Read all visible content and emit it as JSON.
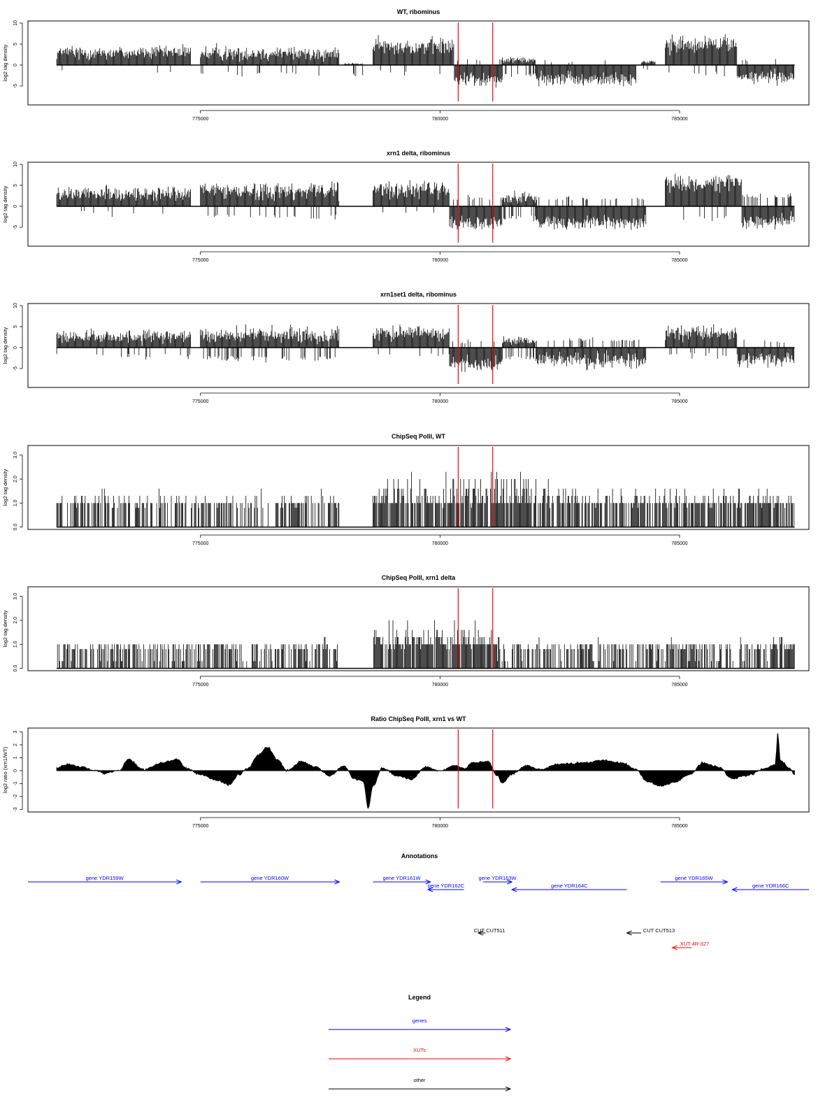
{
  "colors": {
    "gene": "#0000ff",
    "xut": "#ff0000",
    "other": "#000000",
    "marker": "#ff0000",
    "data": "#000000"
  },
  "chart_data": [
    {
      "type": "bar",
      "title": "WT, ribominus",
      "ylabel": "log2 tag density",
      "ylim": [
        -9.5,
        10.5
      ],
      "yticks": [
        -5,
        0,
        5,
        10
      ],
      "ytick_labels": [
        "-5",
        "0",
        "5",
        "10"
      ],
      "xlim": [
        771400,
        787700
      ],
      "xticks": [
        775000,
        780000,
        785000
      ],
      "xtick_labels": [
        "775000",
        "780000",
        "785000"
      ],
      "markers": [
        780380,
        781100
      ],
      "segments": [
        {
          "x": [
            772000,
            774800
          ],
          "mode": "plus",
          "mean": 3.0,
          "amp": 2.5,
          "neg_mean": 1.0,
          "neg_prob": 0.03
        },
        {
          "x": [
            775000,
            777900
          ],
          "mode": "plus",
          "mean": 2.8,
          "amp": 2.5,
          "neg_mean": 1.5,
          "neg_prob": 0.06
        },
        {
          "x": [
            778000,
            778400
          ],
          "mode": "plus",
          "mean": 0.3,
          "amp": 0.3,
          "neg_mean": 2.0,
          "neg_prob": 0.2
        },
        {
          "x": [
            778600,
            780300
          ],
          "mode": "plus",
          "mean": 4.5,
          "amp": 3.0,
          "neg_mean": 1.0,
          "neg_prob": 0.05
        },
        {
          "x": [
            780300,
            781300
          ],
          "mode": "minus",
          "mean": 3.5,
          "amp": 2.5,
          "pos_mean": 1.0,
          "pos_prob": 0.05
        },
        {
          "x": [
            781300,
            782000
          ],
          "mode": "plus",
          "mean": 1.2,
          "amp": 1.2,
          "neg_mean": 2.0,
          "neg_prob": 0.3
        },
        {
          "x": [
            782000,
            784100
          ],
          "mode": "minus",
          "mean": 3.5,
          "amp": 2.5,
          "pos_mean": 0.5,
          "pos_prob": 0.03
        },
        {
          "x": [
            784200,
            784500
          ],
          "mode": "plus",
          "mean": 0.8,
          "amp": 0.6,
          "neg_mean": 0.5,
          "neg_prob": 0.1
        },
        {
          "x": [
            784700,
            786200
          ],
          "mode": "plus",
          "mean": 5.0,
          "amp": 3.0,
          "neg_mean": 1.5,
          "neg_prob": 0.05
        },
        {
          "x": [
            786200,
            787400
          ],
          "mode": "minus",
          "mean": 2.8,
          "amp": 2.5,
          "pos_mean": 0.8,
          "pos_prob": 0.08
        }
      ]
    },
    {
      "type": "bar",
      "title": "xrn1 delta, ribominus",
      "ylabel": "log2 tag density",
      "ylim": [
        -9.5,
        10.5
      ],
      "yticks": [
        -5,
        0,
        5,
        10
      ],
      "ytick_labels": [
        "-5",
        "0",
        "5",
        "10"
      ],
      "xlim": [
        771400,
        787700
      ],
      "xticks": [
        775000,
        780000,
        785000
      ],
      "xtick_labels": [
        "775000",
        "780000",
        "785000"
      ],
      "markers": [
        780380,
        781100
      ],
      "segments": [
        {
          "x": [
            772000,
            774800
          ],
          "mode": "plus",
          "mean": 3.0,
          "amp": 2.5,
          "neg_mean": 1.0,
          "neg_prob": 0.03
        },
        {
          "x": [
            775000,
            777900
          ],
          "mode": "plus",
          "mean": 3.8,
          "amp": 3.0,
          "neg_mean": 2.0,
          "neg_prob": 0.15
        },
        {
          "x": [
            778600,
            780200
          ],
          "mode": "plus",
          "mean": 4.0,
          "amp": 3.0,
          "neg_mean": 1.0,
          "neg_prob": 0.05
        },
        {
          "x": [
            780200,
            781300
          ],
          "mode": "minus",
          "mean": 4.0,
          "amp": 2.5,
          "pos_mean": 1.5,
          "pos_prob": 0.15
        },
        {
          "x": [
            781300,
            782000
          ],
          "mode": "plus",
          "mean": 2.0,
          "amp": 2.0,
          "neg_mean": 2.0,
          "neg_prob": 0.4
        },
        {
          "x": [
            782000,
            784300
          ],
          "mode": "minus",
          "mean": 4.0,
          "amp": 2.5,
          "pos_mean": 1.5,
          "pos_prob": 0.15
        },
        {
          "x": [
            784700,
            786300
          ],
          "mode": "plus",
          "mean": 5.5,
          "amp": 3.0,
          "neg_mean": 2.0,
          "neg_prob": 0.1
        },
        {
          "x": [
            786300,
            787400
          ],
          "mode": "minus",
          "mean": 3.5,
          "amp": 2.5,
          "pos_mean": 2.0,
          "pos_prob": 0.25
        }
      ]
    },
    {
      "type": "bar",
      "title": "xrn1set1 delta, ribominus",
      "ylabel": "log2 tag density",
      "ylim": [
        -9.5,
        10.5
      ],
      "yticks": [
        -5,
        0,
        5,
        10
      ],
      "ytick_labels": [
        "-5",
        "0",
        "5",
        "10"
      ],
      "xlim": [
        771400,
        787700
      ],
      "xticks": [
        775000,
        780000,
        785000
      ],
      "xtick_labels": [
        "775000",
        "780000",
        "785000"
      ],
      "markers": [
        780380,
        781100
      ],
      "segments": [
        {
          "x": [
            772000,
            774800
          ],
          "mode": "plus",
          "mean": 2.5,
          "amp": 2.5,
          "neg_mean": 1.5,
          "neg_prob": 0.1
        },
        {
          "x": [
            775000,
            777900
          ],
          "mode": "plus",
          "mean": 3.0,
          "amp": 3.0,
          "neg_mean": 2.0,
          "neg_prob": 0.25
        },
        {
          "x": [
            778600,
            780200
          ],
          "mode": "plus",
          "mean": 3.5,
          "amp": 2.5,
          "neg_mean": 1.0,
          "neg_prob": 0.08
        },
        {
          "x": [
            780200,
            781300
          ],
          "mode": "minus",
          "mean": 4.0,
          "amp": 2.5,
          "pos_mean": 1.0,
          "pos_prob": 0.08
        },
        {
          "x": [
            781300,
            782000
          ],
          "mode": "plus",
          "mean": 1.5,
          "amp": 1.5,
          "neg_mean": 2.0,
          "neg_prob": 0.35
        },
        {
          "x": [
            782000,
            784300
          ],
          "mode": "minus",
          "mean": 3.0,
          "amp": 3.0,
          "pos_mean": 1.5,
          "pos_prob": 0.2
        },
        {
          "x": [
            784700,
            786200
          ],
          "mode": "plus",
          "mean": 3.5,
          "amp": 2.5,
          "neg_mean": 1.0,
          "neg_prob": 0.1
        },
        {
          "x": [
            786200,
            787400
          ],
          "mode": "minus",
          "mean": 3.0,
          "amp": 2.5,
          "pos_mean": 1.0,
          "pos_prob": 0.1
        }
      ]
    },
    {
      "type": "bar",
      "title": "ChipSeq PolII, WT",
      "ylabel": "log2 tag density",
      "ylim": [
        -0.1,
        3.4
      ],
      "yticks": [
        0,
        1,
        2,
        3
      ],
      "ytick_labels": [
        "0.0",
        "1.0",
        "2.0",
        "3.0"
      ],
      "xlim": [
        771400,
        787700
      ],
      "xticks": [
        775000,
        780000,
        785000
      ],
      "xtick_labels": [
        "775000",
        "780000",
        "785000"
      ],
      "markers": [
        780380,
        781100
      ],
      "segments": [
        {
          "x": [
            772000,
            777900
          ],
          "mode": "levels",
          "mean": 1.1,
          "amp": 0.6,
          "density": 0.55
        },
        {
          "x": [
            778600,
            782300
          ],
          "mode": "levels",
          "mean": 1.5,
          "amp": 1.0,
          "density": 0.85
        },
        {
          "x": [
            782300,
            787400
          ],
          "mode": "levels",
          "mean": 1.2,
          "amp": 0.7,
          "density": 0.7
        }
      ]
    },
    {
      "type": "bar",
      "title": "ChipSeq PolII, xrn1 delta",
      "ylabel": "log2 tag density",
      "ylim": [
        -0.1,
        3.4
      ],
      "yticks": [
        0,
        1,
        2,
        3
      ],
      "ytick_labels": [
        "0.0",
        "1.0",
        "2.0",
        "3.0"
      ],
      "xlim": [
        771400,
        787700
      ],
      "xticks": [
        775000,
        780000,
        785000
      ],
      "xtick_labels": [
        "775000",
        "780000",
        "785000"
      ],
      "markers": [
        780380,
        781100
      ],
      "segments": [
        {
          "x": [
            772000,
            777900
          ],
          "mode": "levels",
          "mean": 0.7,
          "amp": 0.6,
          "density": 0.55
        },
        {
          "x": [
            778600,
            781200
          ],
          "mode": "levels",
          "mean": 1.3,
          "amp": 0.9,
          "density": 0.85
        },
        {
          "x": [
            781200,
            787400
          ],
          "mode": "levels",
          "mean": 0.8,
          "amp": 0.7,
          "density": 0.6
        }
      ]
    },
    {
      "type": "area",
      "title": "Ratio ChipSeq PolII, xrn1 vs WT",
      "ylabel": "log2 ratio (xrn1/WT)",
      "ylim": [
        -3.2,
        3.3
      ],
      "yticks": [
        -3,
        -2,
        -1,
        0,
        1,
        2,
        3
      ],
      "ytick_labels": [
        "-3",
        "-2",
        "-1",
        "0",
        "1",
        "2",
        "3"
      ],
      "xlim": [
        771400,
        787700
      ],
      "xticks": [
        775000,
        780000,
        785000
      ],
      "xtick_labels": [
        "775000",
        "780000",
        "785000"
      ],
      "markers": [
        780380,
        781100
      ],
      "points": [
        {
          "x": 772000,
          "y": 0.2
        },
        {
          "x": 772200,
          "y": 0.5
        },
        {
          "x": 772500,
          "y": 0.3
        },
        {
          "x": 772800,
          "y": 0.0
        },
        {
          "x": 773000,
          "y": -0.2
        },
        {
          "x": 773300,
          "y": 0.0
        },
        {
          "x": 773500,
          "y": 0.9
        },
        {
          "x": 773800,
          "y": 0.1
        },
        {
          "x": 774200,
          "y": 0.6
        },
        {
          "x": 774500,
          "y": 0.9
        },
        {
          "x": 774700,
          "y": 0.2
        },
        {
          "x": 775000,
          "y": -0.3
        },
        {
          "x": 775300,
          "y": -0.7
        },
        {
          "x": 775600,
          "y": -1.1
        },
        {
          "x": 775800,
          "y": -0.3
        },
        {
          "x": 776000,
          "y": 0.2
        },
        {
          "x": 776200,
          "y": 1.2
        },
        {
          "x": 776400,
          "y": 1.8
        },
        {
          "x": 776600,
          "y": 0.9
        },
        {
          "x": 776800,
          "y": 0.0
        },
        {
          "x": 777100,
          "y": 0.7
        },
        {
          "x": 777400,
          "y": 0.3
        },
        {
          "x": 777700,
          "y": -0.4
        },
        {
          "x": 778000,
          "y": 0.4
        },
        {
          "x": 778200,
          "y": -0.6
        },
        {
          "x": 778400,
          "y": -0.8
        },
        {
          "x": 778500,
          "y": -2.9
        },
        {
          "x": 778600,
          "y": -1.2
        },
        {
          "x": 778800,
          "y": 0.2
        },
        {
          "x": 779100,
          "y": -0.4
        },
        {
          "x": 779400,
          "y": -0.7
        },
        {
          "x": 779700,
          "y": 0.3
        },
        {
          "x": 780000,
          "y": 0.0
        },
        {
          "x": 780300,
          "y": 0.4
        },
        {
          "x": 780500,
          "y": 0.2
        },
        {
          "x": 780700,
          "y": 0.6
        },
        {
          "x": 781000,
          "y": 0.7
        },
        {
          "x": 781200,
          "y": -0.4
        },
        {
          "x": 781300,
          "y": -1.0
        },
        {
          "x": 781500,
          "y": -0.3
        },
        {
          "x": 781800,
          "y": 0.4
        },
        {
          "x": 782100,
          "y": 0.1
        },
        {
          "x": 782500,
          "y": 0.5
        },
        {
          "x": 783000,
          "y": 0.6
        },
        {
          "x": 783400,
          "y": 0.8
        },
        {
          "x": 783800,
          "y": 0.6
        },
        {
          "x": 784100,
          "y": 0.1
        },
        {
          "x": 784300,
          "y": -0.8
        },
        {
          "x": 784600,
          "y": -1.2
        },
        {
          "x": 784900,
          "y": -0.9
        },
        {
          "x": 785200,
          "y": -0.3
        },
        {
          "x": 785500,
          "y": 0.6
        },
        {
          "x": 785800,
          "y": 0.3
        },
        {
          "x": 786100,
          "y": -0.6
        },
        {
          "x": 786400,
          "y": -0.4
        },
        {
          "x": 786800,
          "y": 0.2
        },
        {
          "x": 787000,
          "y": 0.5
        },
        {
          "x": 787050,
          "y": 2.9
        },
        {
          "x": 787100,
          "y": 0.8
        },
        {
          "x": 787300,
          "y": 0.2
        },
        {
          "x": 787400,
          "y": -0.3
        }
      ]
    }
  ],
  "annotations": {
    "title": "Annotations",
    "xlim": [
      771400,
      787700
    ],
    "features": [
      {
        "label": "gene YDR159W",
        "x0": 771400,
        "x1": 774600,
        "dir": "right",
        "row": 1,
        "color": "gene"
      },
      {
        "label": "gene YDR160W",
        "x0": 775000,
        "x1": 777900,
        "dir": "right",
        "row": 1,
        "color": "gene"
      },
      {
        "label": "gene YDR161W",
        "x0": 778600,
        "x1": 779800,
        "dir": "right",
        "row": 1,
        "color": "gene"
      },
      {
        "label": "gene YDR162C",
        "x0": 779750,
        "x1": 780500,
        "dir": "left",
        "row": 2,
        "color": "gene"
      },
      {
        "label": "gene YDR163W",
        "x0": 780900,
        "x1": 781500,
        "dir": "right",
        "row": 1,
        "color": "gene"
      },
      {
        "label": "gene YDR164C",
        "x0": 781500,
        "x1": 783900,
        "dir": "left",
        "row": 2,
        "color": "gene"
      },
      {
        "label": "gene YDR165W",
        "x0": 784600,
        "x1": 786000,
        "dir": "right",
        "row": 1,
        "color": "gene"
      },
      {
        "label": "gene YDR166C",
        "x0": 786100,
        "x1": 787700,
        "dir": "left",
        "row": 2,
        "color": "gene"
      },
      {
        "label": "CUT CUT511",
        "x0": 780800,
        "x1": 780950,
        "dir": "left",
        "row": 3,
        "color": "other"
      },
      {
        "label": "CUT CUT513",
        "x0": 783900,
        "x1": 784200,
        "dir": "left",
        "row": 3,
        "color": "other"
      },
      {
        "label": "XUT 4R-327",
        "x0": 784850,
        "x1": 785250,
        "dir": "left",
        "row": 4,
        "color": "xut"
      }
    ]
  },
  "legend": {
    "title": "Legend",
    "items": [
      {
        "label": "genes",
        "color": "gene"
      },
      {
        "label": "XUTs",
        "color": "xut"
      },
      {
        "label": "other",
        "color": "other"
      }
    ]
  }
}
